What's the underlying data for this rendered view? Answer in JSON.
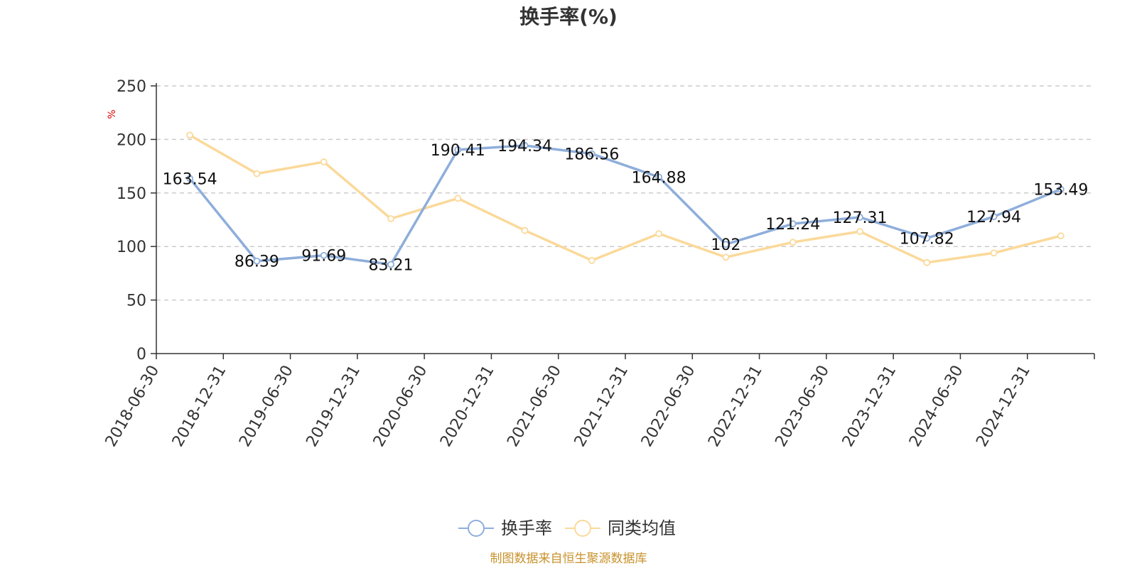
{
  "chart_data": {
    "type": "line",
    "title": "换手率(%)",
    "ylabel": "%",
    "ylim": [
      0,
      250
    ],
    "yticks": [
      0,
      50,
      100,
      150,
      200,
      250
    ],
    "grid": true,
    "legend_position": "bottom-center",
    "categories": [
      "2018-06-30",
      "2018-12-31",
      "2019-06-30",
      "2019-12-31",
      "2020-06-30",
      "2020-12-31",
      "2021-06-30",
      "2021-12-31",
      "2022-06-30",
      "2022-12-31",
      "2023-06-30",
      "2023-12-31",
      "2024-06-30",
      "2024-12-31"
    ],
    "series": [
      {
        "name": "换手率",
        "color": "#8eaedb",
        "show_labels": true,
        "values": [
          163.54,
          86.39,
          91.69,
          83.21,
          190.41,
          194.34,
          186.56,
          164.88,
          102,
          121.24,
          127.31,
          107.82,
          127.94,
          153.49
        ],
        "labels": [
          "163.54",
          "86.39",
          "91.69",
          "83.21",
          "190.41",
          "194.34",
          "186.56",
          "164.88",
          "102",
          "121.24",
          "127.31",
          "107.82",
          "127.94",
          "153.49"
        ]
      },
      {
        "name": "同类均值",
        "color": "#fbd99a",
        "show_labels": false,
        "values": [
          204,
          168,
          179,
          126,
          145,
          115,
          87,
          112,
          90,
          104,
          114,
          85,
          94,
          110
        ]
      }
    ],
    "source_note": "制图数据来自恒生聚源数据库"
  }
}
